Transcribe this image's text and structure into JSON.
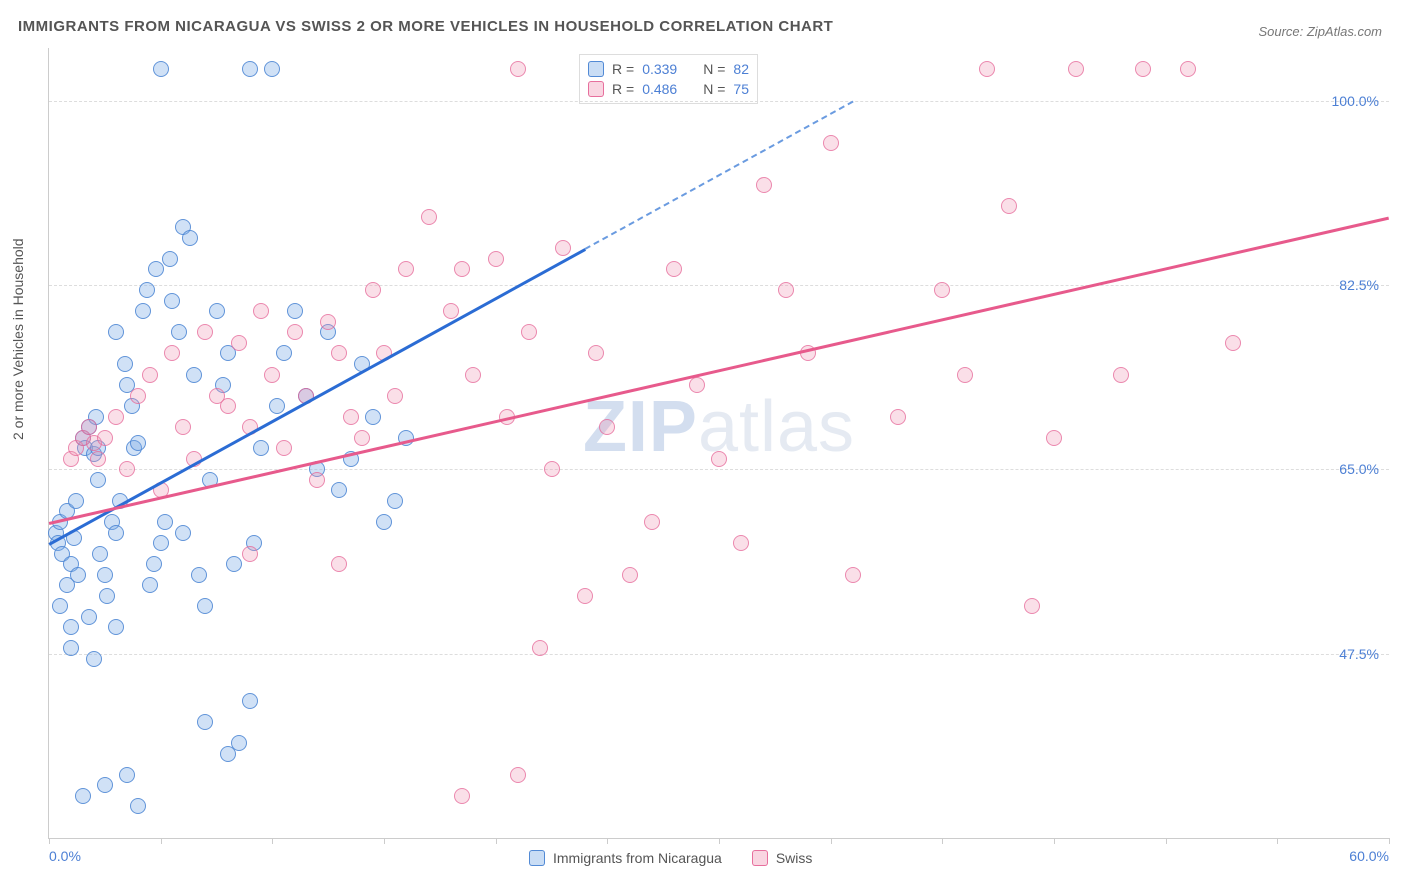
{
  "title": "IMMIGRANTS FROM NICARAGUA VS SWISS 2 OR MORE VEHICLES IN HOUSEHOLD CORRELATION CHART",
  "source": "Source: ZipAtlas.com",
  "ylabel": "2 or more Vehicles in Household",
  "watermark_a": "ZIP",
  "watermark_b": "atlas",
  "chart": {
    "type": "scatter",
    "xlim": [
      0,
      60
    ],
    "ylim": [
      30,
      105
    ],
    "x_ticks": [
      0,
      5,
      10,
      15,
      20,
      25,
      30,
      35,
      40,
      45,
      50,
      55,
      60
    ],
    "x_tick_labels": {
      "0": "0.0%",
      "60": "60.0%"
    },
    "y_gridlines": [
      47.5,
      65.0,
      82.5,
      100.0
    ],
    "y_tick_labels": [
      "47.5%",
      "65.0%",
      "82.5%",
      "100.0%"
    ],
    "background_color": "#ffffff",
    "grid_color": "#dddddd",
    "axis_color": "#cccccc",
    "tick_label_color": "#4c7fd4",
    "title_fontsize": 15,
    "label_fontsize": 14,
    "marker_size": 16
  },
  "series": [
    {
      "name": "Immigrants from Nicaragua",
      "color_fill": "rgba(120,170,230,0.35)",
      "color_stroke": "#468cdc",
      "r": "0.339",
      "n": "82",
      "trend": {
        "x1": 0,
        "y1": 58,
        "x2": 24,
        "y2": 86,
        "dash_to_x": 36,
        "dash_to_y": 100,
        "color": "#2b6cd4"
      },
      "points": [
        [
          0.3,
          59
        ],
        [
          0.4,
          58
        ],
        [
          0.5,
          60
        ],
        [
          0.6,
          57
        ],
        [
          0.8,
          61
        ],
        [
          1.0,
          56
        ],
        [
          1.1,
          58.5
        ],
        [
          1.2,
          62
        ],
        [
          1.3,
          55
        ],
        [
          1.5,
          68
        ],
        [
          1.6,
          67
        ],
        [
          1.8,
          69
        ],
        [
          2.0,
          66.5
        ],
        [
          2.1,
          70
        ],
        [
          2.2,
          64
        ],
        [
          2.3,
          57
        ],
        [
          2.5,
          55
        ],
        [
          2.6,
          53
        ],
        [
          2.8,
          60
        ],
        [
          3.0,
          59
        ],
        [
          3.0,
          78
        ],
        [
          3.2,
          62
        ],
        [
          3.4,
          75
        ],
        [
          3.5,
          73
        ],
        [
          3.7,
          71
        ],
        [
          3.8,
          67
        ],
        [
          4.0,
          67.5
        ],
        [
          4.2,
          80
        ],
        [
          4.4,
          82
        ],
        [
          4.5,
          54
        ],
        [
          4.7,
          56
        ],
        [
          5.0,
          58
        ],
        [
          5.0,
          103
        ],
        [
          5.2,
          60
        ],
        [
          5.4,
          85
        ],
        [
          5.5,
          81
        ],
        [
          5.8,
          78
        ],
        [
          6.0,
          88
        ],
        [
          6.0,
          59
        ],
        [
          6.3,
          87
        ],
        [
          6.5,
          74
        ],
        [
          6.7,
          55
        ],
        [
          7.0,
          52
        ],
        [
          7.0,
          41
        ],
        [
          7.2,
          64
        ],
        [
          7.5,
          80
        ],
        [
          7.8,
          73
        ],
        [
          8.0,
          76
        ],
        [
          8.3,
          56
        ],
        [
          8.5,
          39
        ],
        [
          9.0,
          103
        ],
        [
          9.2,
          58
        ],
        [
          9.5,
          67
        ],
        [
          10.0,
          103
        ],
        [
          10.2,
          71
        ],
        [
          10.5,
          76
        ],
        [
          11.0,
          80
        ],
        [
          11.5,
          72
        ],
        [
          12.0,
          65
        ],
        [
          12.5,
          78
        ],
        [
          13.0,
          63
        ],
        [
          13.5,
          66
        ],
        [
          14.0,
          75
        ],
        [
          14.5,
          70
        ],
        [
          15.0,
          60
        ],
        [
          15.5,
          62
        ],
        [
          16.0,
          68
        ],
        [
          1.0,
          48
        ],
        [
          1.5,
          34
        ],
        [
          2.0,
          47
        ],
        [
          2.5,
          35
        ],
        [
          3.0,
          50
        ],
        [
          3.5,
          36
        ],
        [
          4.0,
          33
        ],
        [
          8.0,
          38
        ],
        [
          9.0,
          43
        ],
        [
          0.5,
          52
        ],
        [
          0.8,
          54
        ],
        [
          1.0,
          50
        ],
        [
          1.8,
          51
        ],
        [
          2.2,
          67
        ],
        [
          4.8,
          84
        ]
      ]
    },
    {
      "name": "Swiss",
      "color_fill": "rgba(240,150,180,0.3)",
      "color_stroke": "#e75a8c",
      "r": "0.486",
      "n": "75",
      "trend": {
        "x1": 0,
        "y1": 60,
        "x2": 60,
        "y2": 89,
        "color": "#e75a8c"
      },
      "points": [
        [
          1.0,
          66
        ],
        [
          1.2,
          67
        ],
        [
          1.5,
          68
        ],
        [
          1.8,
          69
        ],
        [
          2.0,
          67.5
        ],
        [
          2.2,
          66
        ],
        [
          2.5,
          68
        ],
        [
          3.0,
          70
        ],
        [
          3.5,
          65
        ],
        [
          4.0,
          72
        ],
        [
          4.5,
          74
        ],
        [
          5.0,
          63
        ],
        [
          5.5,
          76
        ],
        [
          6.0,
          69
        ],
        [
          6.5,
          66
        ],
        [
          7.0,
          78
        ],
        [
          7.5,
          72
        ],
        [
          8.0,
          71
        ],
        [
          8.5,
          77
        ],
        [
          9.0,
          69
        ],
        [
          9.5,
          80
        ],
        [
          10.0,
          74
        ],
        [
          10.5,
          67
        ],
        [
          11.0,
          78
        ],
        [
          11.5,
          72
        ],
        [
          12.0,
          64
        ],
        [
          12.5,
          79
        ],
        [
          13.0,
          76
        ],
        [
          13.5,
          70
        ],
        [
          14.0,
          68
        ],
        [
          14.5,
          82
        ],
        [
          15.0,
          76
        ],
        [
          15.5,
          72
        ],
        [
          16.0,
          84
        ],
        [
          17.0,
          89
        ],
        [
          18.0,
          80
        ],
        [
          18.5,
          84
        ],
        [
          19.0,
          74
        ],
        [
          20.0,
          85
        ],
        [
          20.5,
          70
        ],
        [
          21.0,
          103
        ],
        [
          21.5,
          78
        ],
        [
          22.0,
          48
        ],
        [
          22.5,
          65
        ],
        [
          23.0,
          86
        ],
        [
          24.0,
          53
        ],
        [
          24.5,
          76
        ],
        [
          25.0,
          69
        ],
        [
          26.0,
          55
        ],
        [
          27.0,
          60
        ],
        [
          28.0,
          84
        ],
        [
          29.0,
          73
        ],
        [
          30.0,
          66
        ],
        [
          31.0,
          58
        ],
        [
          32.0,
          92
        ],
        [
          33.0,
          82
        ],
        [
          34.0,
          76
        ],
        [
          35.0,
          96
        ],
        [
          36.0,
          55
        ],
        [
          38.0,
          70
        ],
        [
          40.0,
          82
        ],
        [
          41.0,
          74
        ],
        [
          42.0,
          103
        ],
        [
          43.0,
          90
        ],
        [
          44.0,
          52
        ],
        [
          45.0,
          68
        ],
        [
          46.0,
          103
        ],
        [
          48.0,
          74
        ],
        [
          49.0,
          103
        ],
        [
          51.0,
          103
        ],
        [
          53.0,
          77
        ],
        [
          18.5,
          34
        ],
        [
          21.0,
          36
        ],
        [
          13.0,
          56
        ],
        [
          9.0,
          57
        ]
      ]
    }
  ],
  "legend_top": {
    "r_label": "R =",
    "n_label": "N ="
  },
  "legend_bottom": [
    "Immigrants from Nicaragua",
    "Swiss"
  ]
}
